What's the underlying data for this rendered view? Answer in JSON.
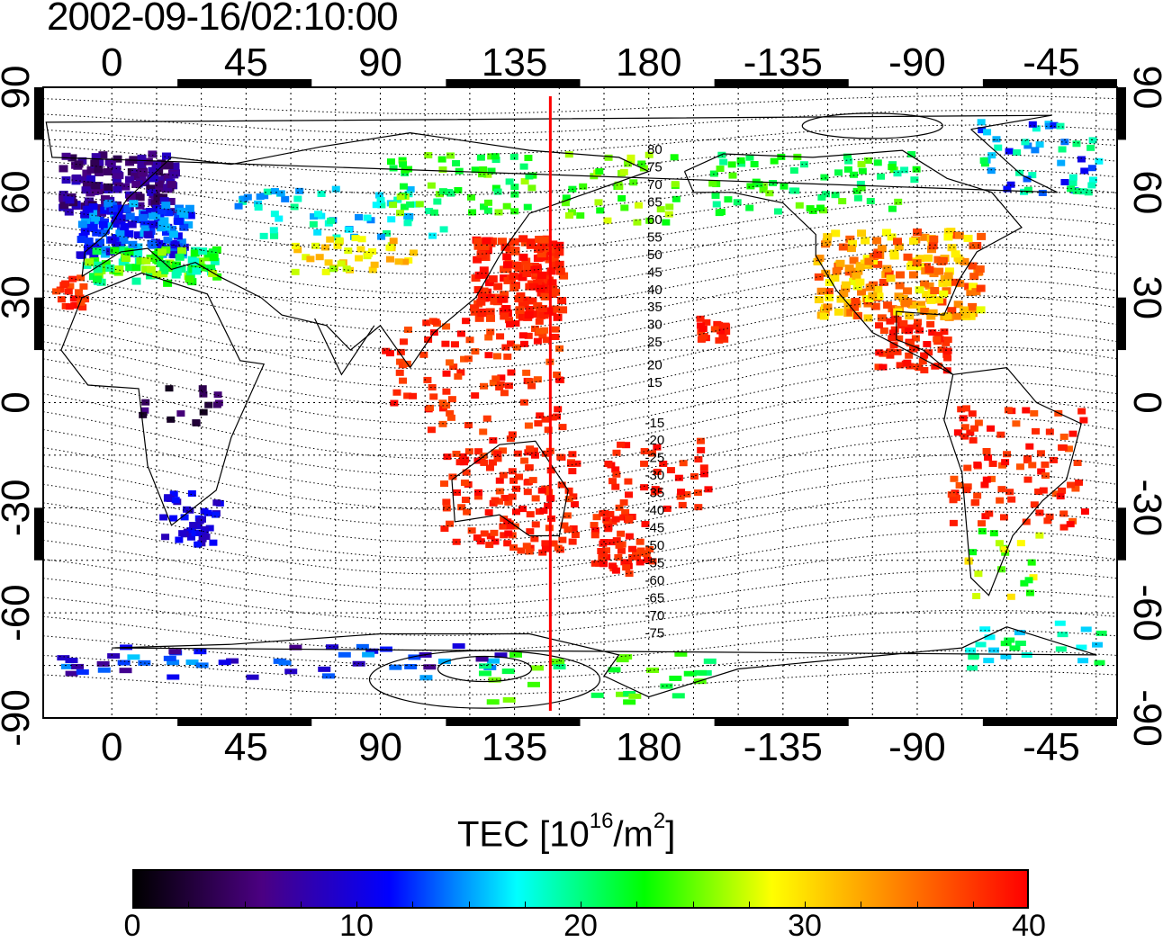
{
  "title": "2002-09-16/02:10:00",
  "map": {
    "lon_ticks": [
      "0",
      "45",
      "90",
      "135",
      "180",
      "-135",
      "-90",
      "-45"
    ],
    "lat_ticks": [
      "90",
      "60",
      "30",
      "0",
      "-30",
      "-60",
      "-90"
    ],
    "lon_range": [
      -23,
      337
    ],
    "lat_range": [
      -90,
      90
    ],
    "meridian_marker_lon": 147,
    "meridian_marker_color": "#ff0000",
    "contour_labels_north": [
      "80",
      "75",
      "70",
      "65",
      "60",
      "55",
      "50",
      "45",
      "40",
      "35",
      "30",
      "25",
      "20",
      "15"
    ],
    "contour_labels_south": [
      "-15",
      "-20",
      "-25",
      "-30",
      "-35",
      "-40",
      "-45",
      "-50",
      "-55",
      "-60",
      "-65",
      "-70",
      "-75"
    ]
  },
  "colorbar": {
    "title_main": "TEC  [10",
    "title_exp1": "16",
    "title_mid": "/m",
    "title_exp2": "2",
    "title_end": "]",
    "min": 0,
    "max": 40,
    "ticks": [
      "0",
      "10",
      "20",
      "30",
      "40"
    ],
    "stops": [
      "#000000",
      "#4b0082",
      "#0000ff",
      "#00ffff",
      "#00ff00",
      "#ffff00",
      "#ff8000",
      "#ff0000"
    ]
  }
}
